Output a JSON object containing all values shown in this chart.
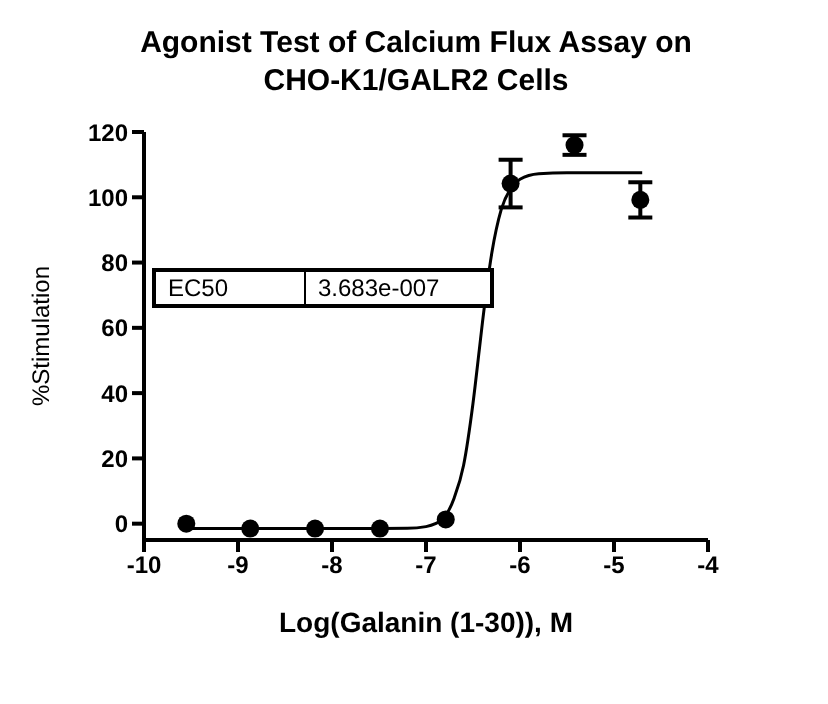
{
  "chart_data": {
    "type": "scatter",
    "title": "Agonist Test of Calcium Flux Assay on CHO-K1/GALR2 Cells",
    "xlabel": "Log(Galanin (1-30)), M",
    "ylabel": "%Stimulation",
    "xlim": [
      -10,
      -4
    ],
    "xticks": [
      -10,
      -9,
      -8,
      -7,
      -6,
      -5,
      -4
    ],
    "ylim": [
      -5,
      120
    ],
    "yticks": [
      0,
      20,
      40,
      60,
      80,
      100,
      120
    ],
    "annotations": [
      "EC50",
      "3.683e-007"
    ],
    "series": [
      {
        "marker": "circle",
        "color": "#000000",
        "x": [
          -9.55,
          -8.87,
          -8.18,
          -7.49,
          -6.79,
          -6.1,
          -5.42,
          -4.72
        ],
        "values": [
          0,
          -1.5,
          -1.5,
          -1.5,
          1.3,
          104.2,
          116,
          99.2
        ],
        "errors": [
          null,
          null,
          null,
          null,
          null,
          7.3,
          3,
          5.4
        ]
      },
      {
        "type": "line",
        "marker": "none",
        "color": "#000000",
        "x": [
          -9.6,
          -8,
          -7.2,
          -7,
          -6.9,
          -6.8,
          -6.7,
          -6.6,
          -6.5,
          -6.434,
          -6.4,
          -6.3,
          -6.2,
          -6.1,
          -6,
          -5.8,
          -5.5,
          -4.7
        ],
        "values": [
          -1.5,
          -1.5,
          -1.4,
          -0.9,
          0,
          2.1,
          7.9,
          17.9,
          36.9,
          53,
          61.5,
          82.9,
          96.2,
          102.7,
          105.5,
          107.2,
          107.5,
          107.5
        ]
      }
    ]
  }
}
